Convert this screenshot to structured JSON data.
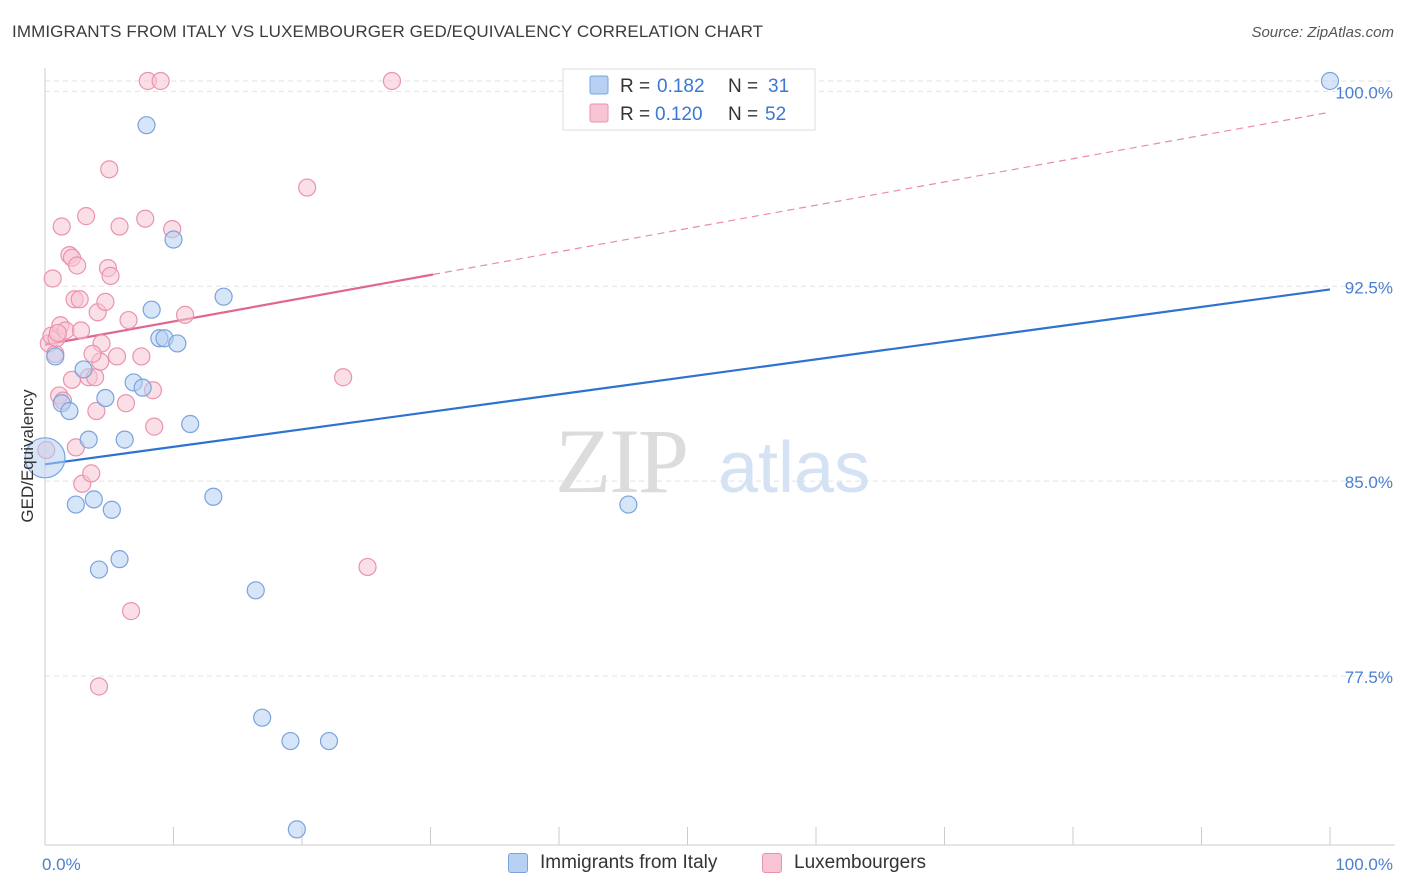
{
  "title": "IMMIGRANTS FROM ITALY VS LUXEMBOURGER GED/EQUIVALENCY CORRELATION CHART",
  "source": "Source: ZipAtlas.com",
  "watermark": {
    "zip": "ZIP",
    "atlas": "atlas"
  },
  "colors": {
    "blue_fill": "#b7d0f3",
    "blue_stroke": "#7aa3dd",
    "blue_line": "#2f72cf",
    "pink_fill": "#f8c4d3",
    "pink_stroke": "#ea93ad",
    "pink_line": "#e06790",
    "tick_text": "#4a7fd0",
    "grid": "#e2e2e2"
  },
  "legend": {
    "rows": [
      {
        "r_label": "R =",
        "r_value": "0.182",
        "n_label": "N =",
        "n_value": "31"
      },
      {
        "r_label": "R =",
        "r_value": "0.120",
        "n_label": "N =",
        "n_value": "52"
      }
    ]
  },
  "bottom_legend": {
    "series1": "Immigrants from Italy",
    "series2": "Luxembourgers"
  },
  "chart_data": {
    "type": "scatter",
    "title": "IMMIGRANTS FROM ITALY VS LUXEMBOURGER GED/EQUIVALENCY CORRELATION CHART",
    "xlabel": "",
    "ylabel": "GED/Equivalency",
    "x_tick_labels": [
      "0.0%",
      "100.0%"
    ],
    "y_tick_labels": [
      "100.0%",
      "92.5%",
      "85.0%",
      "77.5%"
    ],
    "y_ticks": [
      100.0,
      92.5,
      85.0,
      77.5
    ],
    "xlim": [
      0,
      100
    ],
    "ylim": [
      71.0,
      100.9
    ],
    "grid": true,
    "series": [
      {
        "name": "Immigrants from Italy",
        "color": "blue",
        "r": 0.182,
        "n": 31,
        "trend": {
          "x0": 0,
          "y0": 85.65,
          "x1": 100,
          "y1": 92.38,
          "solid_until": 100
        },
        "points": [
          [
            0.0,
            85.9
          ],
          [
            0.8,
            89.8
          ],
          [
            1.3,
            88.0
          ],
          [
            1.9,
            87.7
          ],
          [
            2.4,
            84.1
          ],
          [
            3.0,
            89.3
          ],
          [
            3.4,
            86.6
          ],
          [
            3.8,
            84.3
          ],
          [
            4.2,
            81.6
          ],
          [
            4.7,
            88.2
          ],
          [
            5.2,
            83.9
          ],
          [
            5.8,
            82.0
          ],
          [
            6.2,
            86.6
          ],
          [
            6.9,
            88.8
          ],
          [
            7.6,
            88.6
          ],
          [
            7.9,
            98.7
          ],
          [
            8.3,
            91.6
          ],
          [
            8.9,
            90.5
          ],
          [
            9.3,
            90.5
          ],
          [
            10.0,
            94.3
          ],
          [
            10.3,
            90.3
          ],
          [
            11.3,
            87.2
          ],
          [
            13.1,
            84.4
          ],
          [
            13.9,
            92.1
          ],
          [
            16.4,
            80.8
          ],
          [
            16.9,
            75.9
          ],
          [
            19.1,
            75.0
          ],
          [
            19.6,
            71.6
          ],
          [
            22.1,
            75.0
          ],
          [
            45.4,
            84.1
          ],
          [
            100.0,
            100.4
          ]
        ]
      },
      {
        "name": "Luxembourgers",
        "color": "pink",
        "r": 0.12,
        "n": 52,
        "trend": {
          "x0": 0,
          "y0": 90.25,
          "x1": 100,
          "y1": 99.2,
          "solid_until": 30.2
        },
        "points": [
          [
            0.3,
            90.3
          ],
          [
            0.5,
            90.6
          ],
          [
            0.6,
            92.8
          ],
          [
            0.8,
            89.9
          ],
          [
            0.9,
            90.5
          ],
          [
            1.1,
            88.3
          ],
          [
            1.2,
            91.0
          ],
          [
            1.3,
            94.8
          ],
          [
            1.4,
            88.1
          ],
          [
            1.6,
            90.8
          ],
          [
            1.9,
            93.7
          ],
          [
            2.1,
            93.6
          ],
          [
            2.1,
            88.9
          ],
          [
            2.3,
            92.0
          ],
          [
            2.4,
            86.3
          ],
          [
            2.5,
            93.3
          ],
          [
            2.7,
            92.0
          ],
          [
            2.8,
            90.8
          ],
          [
            2.9,
            84.9
          ],
          [
            3.2,
            95.2
          ],
          [
            3.4,
            89.0
          ],
          [
            3.6,
            85.3
          ],
          [
            3.9,
            89.0
          ],
          [
            4.0,
            87.7
          ],
          [
            4.1,
            91.5
          ],
          [
            4.2,
            77.1
          ],
          [
            4.3,
            89.6
          ],
          [
            4.4,
            90.3
          ],
          [
            4.7,
            91.9
          ],
          [
            4.9,
            93.2
          ],
          [
            5.0,
            97.0
          ],
          [
            5.1,
            92.9
          ],
          [
            5.6,
            89.8
          ],
          [
            5.8,
            94.8
          ],
          [
            6.3,
            88.0
          ],
          [
            6.5,
            91.2
          ],
          [
            6.7,
            80.0
          ],
          [
            7.5,
            89.8
          ],
          [
            7.8,
            95.1
          ],
          [
            8.0,
            100.4
          ],
          [
            8.4,
            88.5
          ],
          [
            8.5,
            87.1
          ],
          [
            9.0,
            100.4
          ],
          [
            9.9,
            94.7
          ],
          [
            10.9,
            91.4
          ],
          [
            20.4,
            96.3
          ],
          [
            23.2,
            89.0
          ],
          [
            25.1,
            81.7
          ],
          [
            27.0,
            100.4
          ],
          [
            0.1,
            86.2
          ],
          [
            1.0,
            90.7
          ],
          [
            3.7,
            89.9
          ]
        ]
      }
    ]
  }
}
